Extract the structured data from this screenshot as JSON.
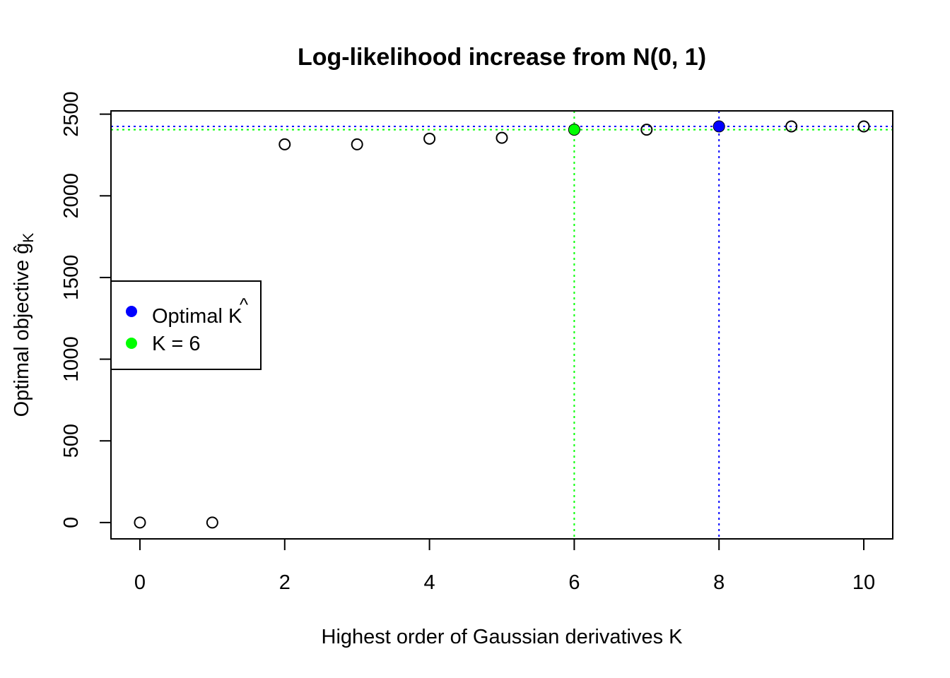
{
  "chart_data": {
    "type": "scatter",
    "title": "Log-likelihood increase from N(0, 1)",
    "xlabel": "Highest order of Gaussian derivatives K",
    "ylabel": "Optimal objective ĝ",
    "ylabel_subscript": "K",
    "xlim": [
      -0.4,
      10.4
    ],
    "ylim": [
      -100,
      2520
    ],
    "x_ticks": [
      0,
      2,
      4,
      6,
      8,
      10
    ],
    "y_ticks": [
      0,
      500,
      1000,
      1500,
      2000,
      2500
    ],
    "x": [
      0,
      1,
      2,
      3,
      4,
      5,
      6,
      7,
      8,
      9,
      10
    ],
    "y": [
      0,
      0,
      2315,
      2315,
      2350,
      2355,
      2405,
      2405,
      2425,
      2425,
      2425
    ],
    "highlights": [
      {
        "label": "Optimal K̂",
        "x": 8,
        "y": 2425,
        "color": "#0000ff"
      },
      {
        "label": "K = 6",
        "x": 6,
        "y": 2405,
        "color": "#00ff00"
      }
    ],
    "legend": {
      "placement": "left",
      "entries": [
        {
          "label": "Optimal K",
          "label_hat": "^",
          "color": "#0000ff"
        },
        {
          "label": "K = 6",
          "color": "#00ff00"
        }
      ]
    },
    "grid": false
  }
}
